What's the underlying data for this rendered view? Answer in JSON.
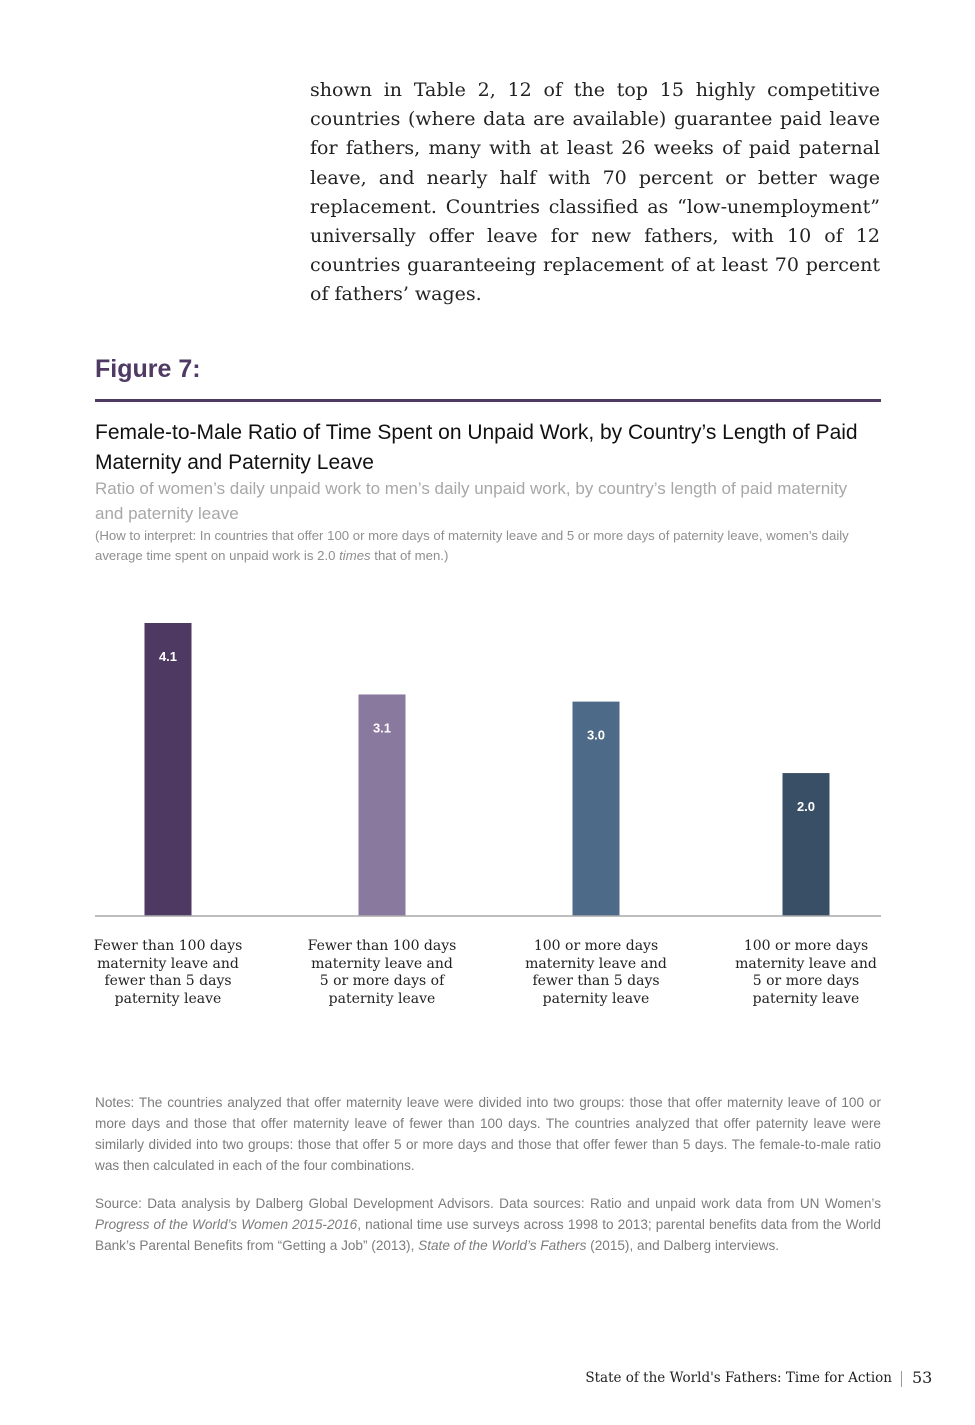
{
  "intro": {
    "text": "shown in Table 2, 12 of the top 15 highly competitive countries (where data are available) guarantee paid leave for fathers, many with at least 26 weeks of paid paternal leave, and nearly half with 70 percent or better wage replacement. Countries classified as “low-unemployment” universally offer leave for new fathers, with 10 of 12 countries guaranteeing replacement of at least 70 percent of fathers’ wages."
  },
  "figure": {
    "label": "Figure 7:",
    "title": "Female-to-Male Ratio of Time Spent on Unpaid Work, by Country’s Length of Paid Maternity and Paternity Leave",
    "subtitle": "Ratio of women’s daily unpaid work to men’s daily unpaid work, by country’s length of paid maternity and paternity leave",
    "interpret_before": "(How to interpret: In countries that offer 100 or more days of maternity leave and 5 or more days of paternity leave, women’s daily average time spent on unpaid work is 2.0 ",
    "interpret_italic": "times",
    "interpret_after": " that of men.)"
  },
  "chart_data": {
    "type": "bar",
    "categories": [
      "Fewer than 100 days maternity leave and fewer than 5 days paternity leave",
      "Fewer than 100 days maternity leave and 5 or more days of paternity leave",
      "100 or more days maternity leave and fewer than 5 days paternity leave",
      "100 or more days maternity leave and 5 or more days paternity leave"
    ],
    "values": [
      4.1,
      3.1,
      3.0,
      2.0
    ],
    "value_labels": [
      "4.1",
      "3.1",
      "3.0",
      "2.0"
    ],
    "colors": [
      "#4e3962",
      "#8a799e",
      "#4d6a89",
      "#384f66"
    ],
    "ylim": [
      0,
      4.1
    ],
    "grid": false,
    "title": "",
    "xlabel": "",
    "ylabel": ""
  },
  "notes": {
    "text": "Notes: The countries analyzed that offer maternity leave were divided into two groups: those that offer maternity leave of 100 or more days and those that offer maternity leave of fewer than 100 days. The countries analyzed that offer paternity leave were similarly divided into two groups: those that offer 5 or more days and those that offer fewer than 5 days. The female-to-male ratio was then calculated in each of the four combinations."
  },
  "source": {
    "part1": "Source: Data analysis by Dalberg Global Development Advisors. Data sources: Ratio and unpaid work data from UN Women’s ",
    "italic1": "Progress of the World’s Women 2015-2016",
    "part2": ", national time use surveys across 1998 to 2013; parental benefits data from the World Bank’s Parental Benefits from “Getting a Job” (2013), ",
    "italic2": "State of the World’s Fathers",
    "part3": " (2015), and Dalberg interviews."
  },
  "footer": {
    "title": "State of the World's Fathers: Time for Action",
    "page_number": "53"
  }
}
